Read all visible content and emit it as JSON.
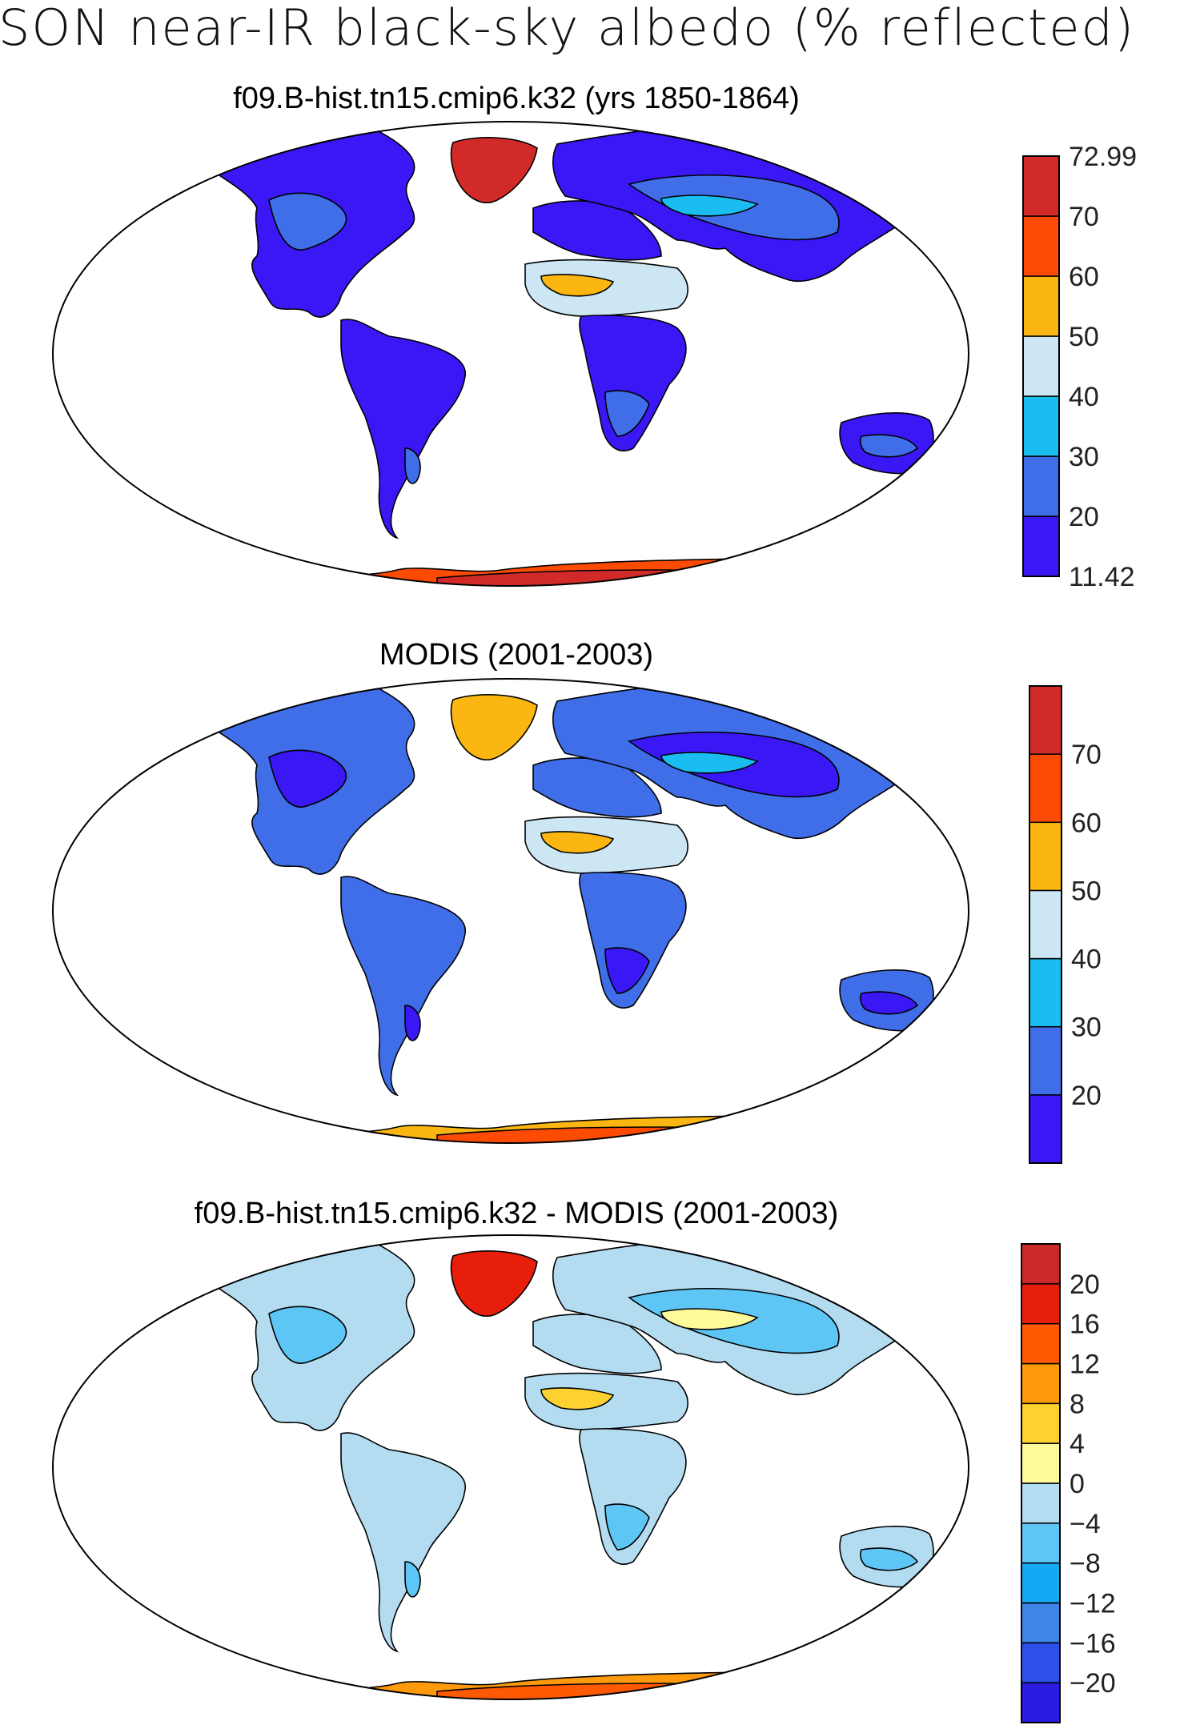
{
  "title": "SON near-IR black-sky albedo (% reflected)",
  "panels": [
    {
      "title": "f09.B-hist.tn15.cmip6.k32 (yrs 1850-1864)",
      "colorbar": {
        "colors": [
          "#3a17f5",
          "#3f6ee8",
          "#19bdf0",
          "#cde6f3",
          "#fbb612",
          "#fe4b04",
          "#d22a28"
        ],
        "labels": [
          "11.42",
          "20",
          "30",
          "40",
          "50",
          "60",
          "70",
          "72.99"
        ],
        "edge_labels": true
      },
      "regions": {
        "land": "#3a17f5",
        "mid": "#3f6ee8",
        "light": "#19bdf0",
        "desert": "#cde6f3",
        "hot": "#fbb612",
        "greenland": "#d22a28",
        "antarctica": "#fe4b04",
        "antarctica_inner": "#d22a28"
      }
    },
    {
      "title": "MODIS (2001-2003)",
      "colorbar": {
        "colors": [
          "#3a17f5",
          "#3f6ee8",
          "#19bdf0",
          "#cde6f3",
          "#fbb612",
          "#fe4b04",
          "#d22a28"
        ],
        "labels": [
          "20",
          "30",
          "40",
          "50",
          "60",
          "70"
        ],
        "edge_labels": false
      },
      "regions": {
        "land": "#3f6ee8",
        "mid": "#3a17f5",
        "light": "#19bdf0",
        "desert": "#cde6f3",
        "hot": "#fbb612",
        "greenland": "#fbb612",
        "antarctica": "#fbb612",
        "antarctica_inner": "#fe4b04"
      }
    },
    {
      "title": "f09.B-hist.tn15.cmip6.k32 - MODIS (2001-2003)",
      "colorbar": {
        "colors": [
          "#2b1be0",
          "#2e4fe8",
          "#3f85e8",
          "#14a9f2",
          "#5ec6f5",
          "#b3dcf1",
          "#fdfa9a",
          "#fcd130",
          "#fe9a0c",
          "#fe5a04",
          "#e81e0c",
          "#c92a28"
        ],
        "labels": [
          "−20",
          "−16",
          "−12",
          "−8",
          "−4",
          "0",
          "4",
          "8",
          "12",
          "16",
          "20"
        ],
        "edge_labels": false
      },
      "regions": {
        "land": "#b3dcf1",
        "mid": "#5ec6f5",
        "light": "#fdfa9a",
        "desert": "#b3dcf1",
        "hot": "#fcd130",
        "greenland": "#e81e0c",
        "antarctica": "#fe9a0c",
        "antarctica_inner": "#fe5a04"
      }
    }
  ]
}
